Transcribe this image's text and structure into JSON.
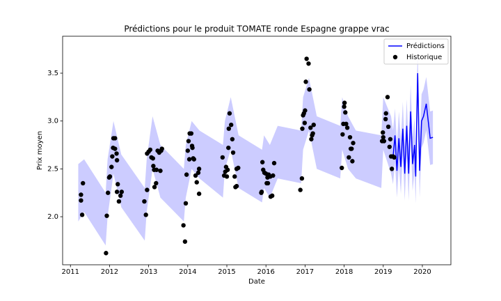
{
  "chart_data": {
    "type": "scatter",
    "title": "Prédictions pour le produit TOMATE ronde Espagne grappe vrac",
    "x_label": "Date",
    "y_label": "Prix moyen",
    "xlim": [
      2010.8,
      2020.73
    ],
    "ylim": [
      1.498,
      3.886
    ],
    "xticks": [
      2011,
      2012,
      2013,
      2014,
      2015,
      2016,
      2017,
      2018,
      2019,
      2020
    ],
    "yticks": [
      {
        "value": 2,
        "label": "2.0"
      },
      {
        "value": 2.5,
        "label": "2.5"
      },
      {
        "value": 3,
        "label": "3.0"
      },
      {
        "value": 3.5,
        "label": "3.5"
      }
    ],
    "legend": "upper right",
    "series": [
      {
        "name": "Prédictions",
        "color": "#0000ff",
        "kind": "line",
        "x": [
          2019.25,
          2019.3,
          2019.35,
          2019.4,
          2019.45,
          2019.5,
          2019.55,
          2019.6,
          2019.65,
          2019.7,
          2019.75,
          2019.8,
          2019.83,
          2019.88,
          2019.93,
          2019.98,
          2020.03,
          2020.1,
          2020.15,
          2020.2,
          2020.27
        ],
        "values": [
          2.62,
          2.85,
          2.48,
          2.82,
          2.52,
          2.92,
          2.45,
          2.95,
          2.45,
          3.1,
          2.55,
          2.75,
          2.42,
          3.5,
          2.48,
          3.0,
          3.05,
          3.18,
          3.0,
          2.82,
          2.83
        ]
      },
      {
        "name": "Historique",
        "color": "#000000",
        "kind": "scatter",
        "x": [
          2011.27,
          2011.27,
          2011.3,
          2011.32,
          2011.91,
          2011.93,
          2011.96,
          2011.99,
          2012.01,
          2012.05,
          2012.07,
          2012.09,
          2012.1,
          2012.14,
          2012.14,
          2012.18,
          2012.19,
          2012.21,
          2012.19,
          2012.24,
          2012.28,
          2012.31,
          2012.89,
          2012.93,
          2012.96,
          2012.96,
          2013.0,
          2013.04,
          2013.07,
          2013.11,
          2013.12,
          2013.14,
          2013.15,
          2013.19,
          2013.2,
          2013.23,
          2013.27,
          2013.3,
          2013.32,
          2013.34,
          2013.89,
          2013.93,
          2013.95,
          2013.97,
          2014.0,
          2014.02,
          2014.04,
          2014.05,
          2014.09,
          2014.11,
          2014.12,
          2014.14,
          2014.16,
          2014.2,
          2014.23,
          2014.27,
          2014.29,
          2014.29,
          2014.89,
          2014.93,
          2014.96,
          2014.98,
          2015.0,
          2015.02,
          2015.04,
          2015.05,
          2015.07,
          2015.11,
          2015.14,
          2015.16,
          2015.2,
          2015.22,
          2015.25,
          2015.25,
          2015.29,
          2015.88,
          2015.89,
          2015.91,
          2015.93,
          2015.96,
          2016.0,
          2016.02,
          2016.04,
          2016.05,
          2016.07,
          2016.11,
          2016.12,
          2016.16,
          2016.18,
          2016.21,
          2016.88,
          2016.92,
          2016.93,
          2016.95,
          2016.97,
          2016.99,
          2017.0,
          2017.02,
          2017.04,
          2017.09,
          2017.11,
          2017.14,
          2017.16,
          2017.18,
          2017.2,
          2017.22,
          2017.94,
          2017.96,
          2017.98,
          2018.0,
          2018.01,
          2018.03,
          2018.05,
          2018.08,
          2018.12,
          2018.15,
          2018.17,
          2018.19,
          2018.21,
          2018.23,
          2018.97,
          2018.99,
          2019.0,
          2019.02,
          2019.06,
          2019.07,
          2019.11,
          2019.13,
          2019.16,
          2019.18,
          2019.2,
          2019.22,
          2019.25,
          2019.28
        ],
        "values": [
          2.17,
          2.23,
          2.02,
          2.35,
          1.62,
          2.01,
          2.25,
          2.41,
          2.42,
          2.52,
          2.63,
          2.72,
          2.82,
          2.82,
          2.71,
          2.66,
          2.59,
          2.34,
          2.26,
          2.16,
          2.22,
          2.26,
          2.16,
          2.02,
          2.28,
          2.66,
          2.68,
          2.7,
          2.62,
          2.61,
          2.53,
          2.49,
          2.31,
          2.35,
          2.49,
          2.69,
          2.67,
          2.48,
          2.69,
          2.71,
          1.91,
          1.74,
          2.14,
          2.44,
          2.69,
          2.79,
          2.6,
          2.87,
          2.87,
          2.74,
          2.72,
          2.61,
          2.6,
          2.43,
          2.36,
          2.46,
          2.24,
          2.5,
          2.62,
          2.43,
          2.47,
          2.52,
          2.42,
          2.49,
          2.72,
          2.92,
          3.08,
          2.96,
          2.81,
          2.67,
          2.42,
          2.31,
          2.32,
          2.5,
          2.51,
          2.25,
          2.26,
          2.57,
          2.49,
          2.46,
          2.45,
          2.35,
          2.41,
          2.35,
          2.44,
          2.42,
          2.21,
          2.22,
          2.43,
          2.56,
          2.28,
          2.4,
          2.92,
          3.06,
          3.08,
          2.98,
          3.11,
          3.41,
          3.65,
          3.6,
          3.33,
          2.93,
          2.81,
          2.85,
          2.87,
          2.96,
          2.51,
          2.86,
          2.97,
          3.15,
          3.19,
          3.09,
          2.97,
          2.93,
          2.62,
          2.83,
          2.71,
          2.71,
          2.58,
          2.77,
          2.79,
          2.88,
          2.83,
          2.79,
          3.02,
          3.08,
          3.25,
          2.94,
          2.73,
          2.81,
          2.63,
          2.5,
          2.63,
          2.62
        ]
      }
    ],
    "band": {
      "color": "#0000ff",
      "x": [
        2011.2,
        2011.35,
        2011.9,
        2011.95,
        2012.1,
        2012.3,
        2012.9,
        2012.95,
        2013.1,
        2013.3,
        2013.9,
        2013.95,
        2014.1,
        2014.3,
        2014.9,
        2014.95,
        2015.1,
        2015.3,
        2015.9,
        2015.95,
        2016.1,
        2016.3,
        2016.9,
        2016.95,
        2017.1,
        2017.3,
        2017.9,
        2017.95,
        2018.1,
        2018.3,
        2018.95,
        2019.0,
        2019.2,
        2019.25,
        2019.3,
        2019.35,
        2019.4,
        2019.45,
        2019.5,
        2019.55,
        2019.6,
        2019.65,
        2019.7,
        2019.75,
        2019.8,
        2019.83,
        2019.88,
        2019.93,
        2019.98,
        2020.03,
        2020.1,
        2020.15,
        2020.2,
        2020.27
      ],
      "lower": [
        1.95,
        2.05,
        1.7,
        2.0,
        2.45,
        2.1,
        1.75,
        2.05,
        2.5,
        2.2,
        1.95,
        2.2,
        2.5,
        2.4,
        2.2,
        2.5,
        2.7,
        2.3,
        2.15,
        2.3,
        2.2,
        2.4,
        2.35,
        2.7,
        2.9,
        2.5,
        2.4,
        2.7,
        2.5,
        2.4,
        2.3,
        2.7,
        2.45,
        2.34,
        2.57,
        2.2,
        2.54,
        2.24,
        2.64,
        2.17,
        2.67,
        2.17,
        2.82,
        2.27,
        2.47,
        2.14,
        3.22,
        2.2,
        2.72,
        2.77,
        2.9,
        2.72,
        2.54,
        2.55
      ],
      "upper": [
        2.55,
        2.6,
        2.25,
        2.6,
        3.0,
        2.65,
        2.3,
        2.6,
        3.05,
        2.75,
        2.5,
        2.75,
        3.0,
        2.9,
        2.75,
        3.0,
        3.25,
        2.85,
        2.7,
        2.85,
        2.75,
        2.95,
        2.9,
        3.25,
        3.45,
        3.05,
        2.95,
        3.25,
        3.05,
        2.9,
        2.85,
        3.25,
        3.05,
        2.9,
        3.13,
        2.76,
        3.1,
        2.8,
        3.2,
        2.73,
        3.23,
        2.73,
        3.38,
        2.83,
        3.03,
        2.7,
        3.78,
        2.76,
        3.28,
        3.33,
        3.46,
        3.28,
        3.1,
        3.11
      ]
    }
  }
}
